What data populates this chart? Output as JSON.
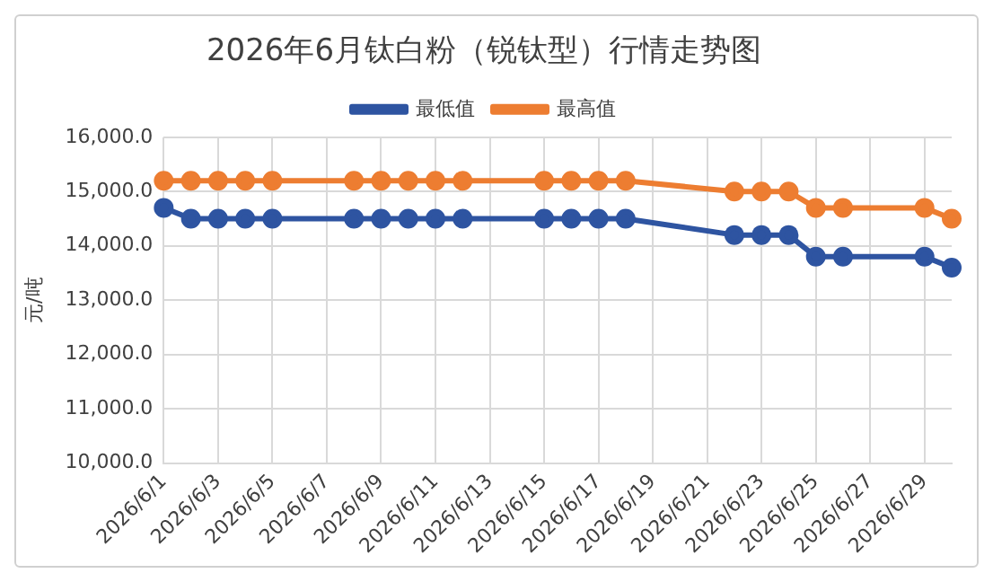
{
  "chart_data": {
    "type": "line",
    "title": "2026年6月钛白粉（锐钛型）行情走势图",
    "ylabel": "元/吨",
    "categories": [
      "2026/6/1",
      null,
      "2026/6/3",
      null,
      "2026/6/5",
      null,
      "2026/6/7",
      null,
      "2026/6/9",
      null,
      "2026/6/11",
      null,
      "2026/6/13",
      null,
      "2026/6/15",
      null,
      "2026/6/17",
      null,
      "2026/6/19",
      null,
      "2026/6/21",
      null,
      "2026/6/23",
      null,
      "2026/6/25",
      null,
      "2026/6/27",
      null,
      "2026/6/29",
      null
    ],
    "series": [
      {
        "name": "最低值",
        "color": "#2e54a1",
        "values": [
          14700,
          14500,
          14500,
          14500,
          14500,
          null,
          null,
          14500,
          14500,
          14500,
          14500,
          14500,
          null,
          null,
          14500,
          14500,
          14500,
          14500,
          null,
          null,
          null,
          14200,
          14200,
          14200,
          13800,
          13800,
          null,
          null,
          13800,
          13600
        ]
      },
      {
        "name": "最高值",
        "color": "#ed7d31",
        "values": [
          15200,
          15200,
          15200,
          15200,
          15200,
          null,
          null,
          15200,
          15200,
          15200,
          15200,
          15200,
          null,
          null,
          15200,
          15200,
          15200,
          15200,
          null,
          null,
          null,
          15000,
          15000,
          15000,
          14700,
          14700,
          null,
          null,
          14700,
          14500
        ]
      }
    ],
    "ylim": [
      10000,
      16000
    ],
    "yticks": [
      {
        "value": 10000,
        "label": "10,000.0"
      },
      {
        "value": 11000,
        "label": "11,000.0"
      },
      {
        "value": 12000,
        "label": "12,000.0"
      },
      {
        "value": 13000,
        "label": "13,000.0"
      },
      {
        "value": 14000,
        "label": "14,000.0"
      },
      {
        "value": 15000,
        "label": "15,000.0"
      },
      {
        "value": 16000,
        "label": "16,000.0"
      }
    ],
    "grid": true,
    "legend": "top",
    "marker": "circle",
    "line_style": "solid"
  }
}
